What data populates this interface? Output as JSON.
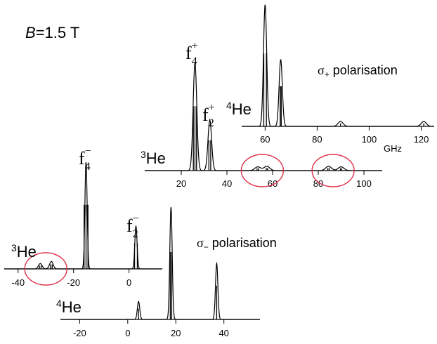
{
  "title": {
    "field_symbol": "B",
    "field_value": "=1.5 T"
  },
  "chart_data": [
    {
      "type": "line",
      "name": "sigma_plus_3He",
      "isotope_label": "3He",
      "xlim": [
        4,
        108
      ],
      "x_ticks": [
        20,
        40,
        60,
        80,
        100
      ],
      "peaks": [
        {
          "x": 26.0,
          "height": 1.0,
          "label": "f4+",
          "sticks": [
            25.3,
            26.0,
            26.7
          ]
        },
        {
          "x": 32.5,
          "height": 0.47,
          "label": "f2+",
          "sticks": [
            32.1,
            32.9
          ]
        },
        {
          "x": 53.5,
          "height": 0.035,
          "sticks": [
            53.2,
            53.8
          ]
        },
        {
          "x": 57.5,
          "height": 0.04,
          "sticks": [
            57.2,
            57.8
          ]
        },
        {
          "x": 84.5,
          "height": 0.04,
          "sticks": [
            84.2,
            84.8
          ]
        },
        {
          "x": 90.0,
          "height": 0.035,
          "sticks": [
            89.7,
            90.3
          ]
        }
      ],
      "peak_labels": {
        "f4+": {
          "base": "f",
          "sub": "4",
          "sup": "+"
        },
        "f2+": {
          "base": "f",
          "sub": "2",
          "sup": "+"
        }
      },
      "highlighted_ranges": [
        [
          49,
          62
        ],
        [
          77,
          96
        ]
      ]
    },
    {
      "type": "line",
      "name": "sigma_plus_4He",
      "isotope_label": "4He",
      "polarisation_label": "σ+ polarisation",
      "xlabel": "GHz",
      "xlim": [
        51,
        125
      ],
      "x_ticks": [
        60,
        80,
        100,
        120
      ],
      "peaks": [
        {
          "x": 60.0,
          "height": 1.0,
          "sticks": [
            59.5,
            60.5
          ]
        },
        {
          "x": 66.0,
          "height": 0.55,
          "sticks": [
            65.8,
            66.2
          ]
        },
        {
          "x": 89.0,
          "height": 0.04,
          "sticks": [
            89.0
          ]
        },
        {
          "x": 121.0,
          "height": 0.04,
          "sticks": [
            121.0
          ]
        }
      ]
    },
    {
      "type": "line",
      "name": "sigma_minus_3He",
      "isotope_label": "3He",
      "xlim": [
        -45,
        12
      ],
      "x_ticks": [
        -40,
        -20,
        0
      ],
      "peaks": [
        {
          "x": -15.5,
          "height": 1.0,
          "label": "f4-",
          "sticks": [
            -16.2,
            -15.5,
            -14.8
          ]
        },
        {
          "x": 2.5,
          "height": 0.4,
          "label": "f2-",
          "sticks": [
            2.0,
            3.0
          ]
        },
        {
          "x": -32.0,
          "height": 0.05,
          "sticks": [
            -32.3,
            -31.7
          ]
        },
        {
          "x": -28.0,
          "height": 0.07,
          "sticks": [
            -28.3,
            -27.7
          ]
        }
      ],
      "peak_labels": {
        "f4-": {
          "base": "f",
          "sub": "4",
          "sup": "−"
        },
        "f2-": {
          "base": "f",
          "sub": "2",
          "sup": "−"
        }
      },
      "highlighted_ranges": [
        [
          -36,
          -24
        ]
      ]
    },
    {
      "type": "line",
      "name": "sigma_minus_4He",
      "isotope_label": "4He",
      "polarisation_label": "σ− polarisation",
      "xlim": [
        -28,
        55
      ],
      "x_ticks": [
        -20,
        0,
        20,
        40
      ],
      "peaks": [
        {
          "x": 4.5,
          "height": 0.16,
          "sticks": [
            4.5
          ]
        },
        {
          "x": 18.0,
          "height": 1.0,
          "sticks": [
            17.7,
            18.3
          ]
        },
        {
          "x": 37.0,
          "height": 0.5,
          "sticks": [
            37.0
          ]
        }
      ]
    }
  ]
}
